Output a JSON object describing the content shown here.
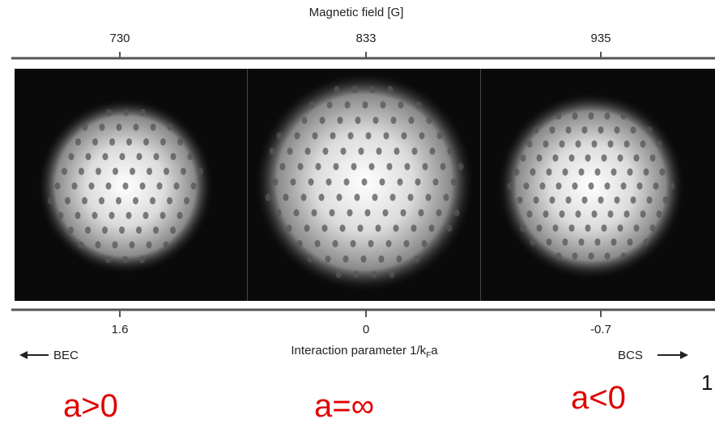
{
  "figure": {
    "top_axis": {
      "label": "Magnetic field [G]",
      "ticks": [
        "730",
        "833",
        "935"
      ]
    },
    "bottom_axis": {
      "label": {
        "text": "Interaction parameter 1/k",
        "subscript": "F",
        "suffix": "a"
      },
      "ticks": [
        "1.6",
        "0",
        "-0.7"
      ]
    },
    "left_arrow": "BEC",
    "right_arrow": "BCS",
    "annotations": [
      "a>0",
      "a=∞",
      "a<0"
    ],
    "page_number": "1"
  }
}
